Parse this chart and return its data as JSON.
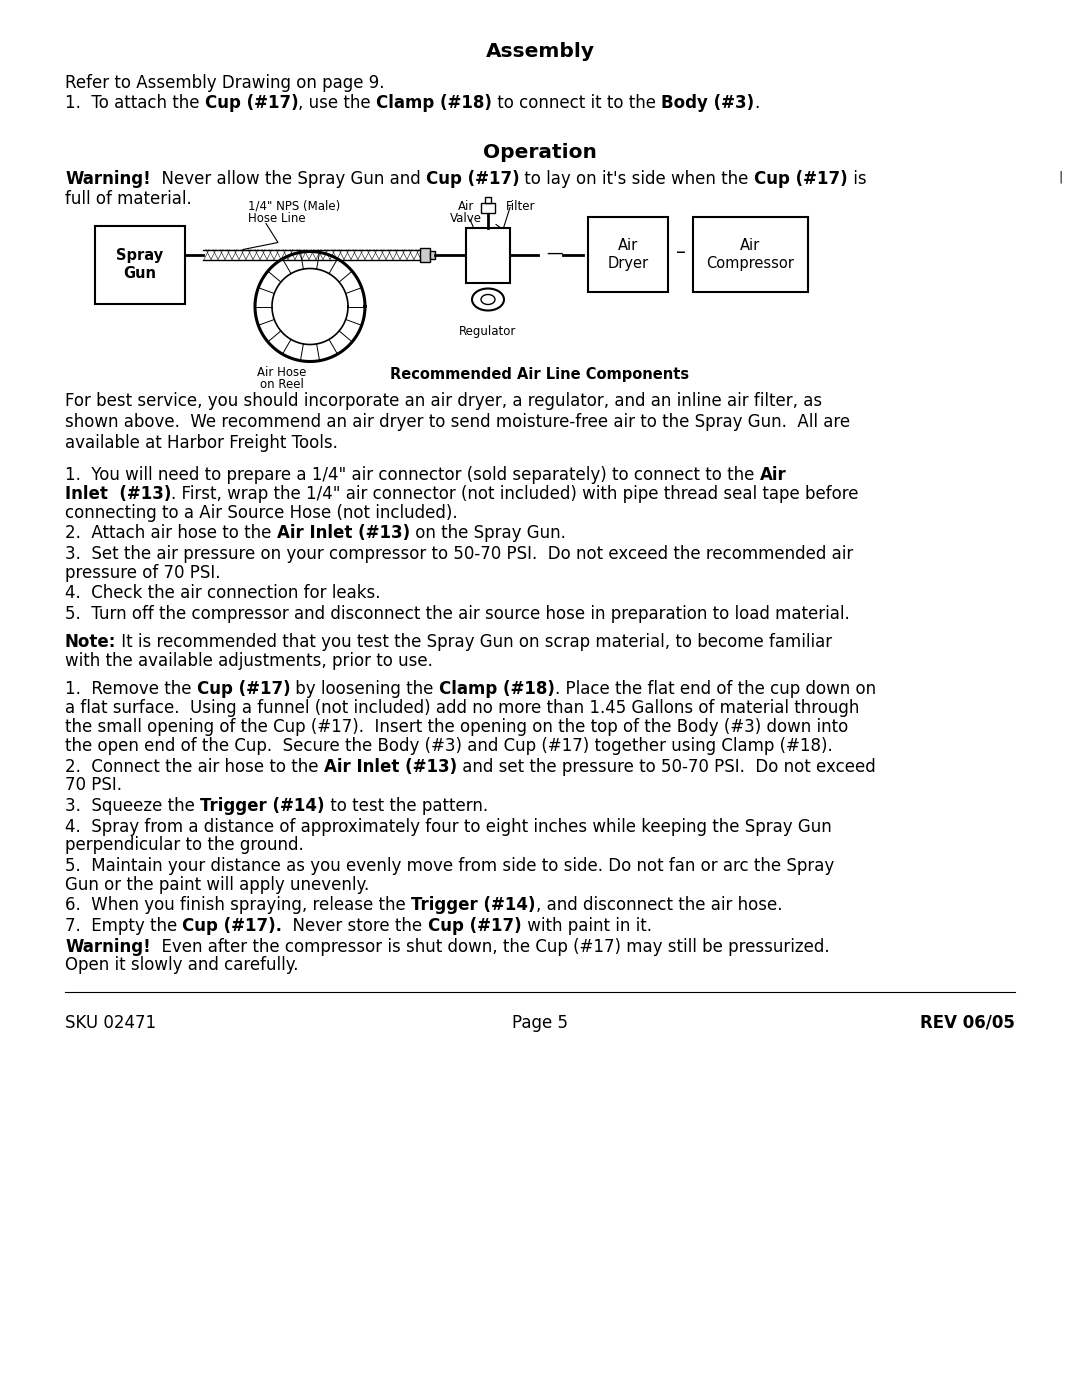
{
  "bg_color": "#ffffff",
  "title_assembly": "Assembly",
  "title_operation": "Operation",
  "footer_left": "SKU 02471",
  "footer_center": "Page 5",
  "footer_right": "REV 06/05"
}
